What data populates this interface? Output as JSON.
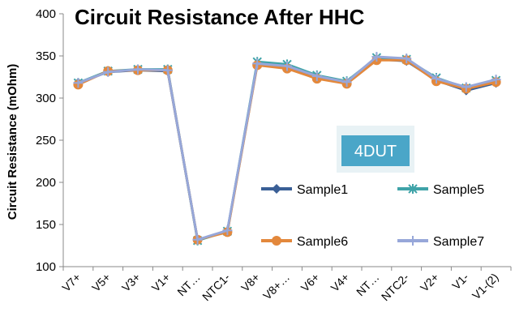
{
  "chart_data": {
    "type": "line",
    "title": "Circuit Resistance After HHC",
    "ylabel": "Circuit Resistance (mOhm)",
    "xlabel": "",
    "ylim": [
      100,
      400
    ],
    "yticks": [
      100,
      150,
      200,
      250,
      300,
      350,
      400
    ],
    "grid": false,
    "legend_placement": "bottom-right",
    "badge": "4DUT",
    "categories": [
      "V7+",
      "V5+",
      "V3+",
      "V1+",
      "NT…",
      "NTC1-",
      "V8+",
      "V8+…",
      "V6+",
      "V4+",
      "NT…",
      "NTC2-",
      "V2+",
      "V1-",
      "V1-(2)"
    ],
    "series": [
      {
        "name": "Sample1",
        "color": "#3a5f96",
        "marker": "diamond",
        "values": [
          318,
          331,
          333,
          332,
          132,
          142,
          340,
          336,
          325,
          318,
          346,
          344,
          321,
          309,
          318
        ]
      },
      {
        "name": "Sample5",
        "color": "#3fa3a8",
        "marker": "star",
        "values": [
          318,
          332,
          334,
          334,
          131,
          142,
          343,
          340,
          327,
          320,
          348,
          346,
          324,
          312,
          321
        ]
      },
      {
        "name": "Sample6",
        "color": "#e3883c",
        "marker": "circle",
        "values": [
          316,
          332,
          333,
          333,
          132,
          141,
          339,
          335,
          323,
          317,
          345,
          345,
          320,
          311,
          319
        ]
      },
      {
        "name": "Sample7",
        "color": "#97a7d9",
        "marker": "plus",
        "values": [
          318,
          331,
          334,
          333,
          132,
          143,
          341,
          338,
          326,
          319,
          349,
          347,
          323,
          313,
          322
        ]
      }
    ]
  }
}
